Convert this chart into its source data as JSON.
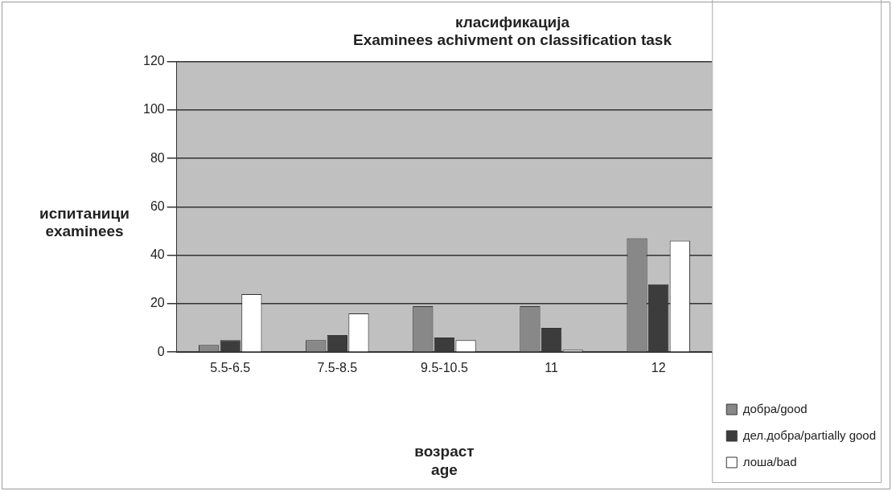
{
  "chart_data": {
    "type": "bar",
    "title": "класификација\nExaminees achivment on classification task",
    "xlabel": "возраст\nage",
    "ylabel": "испитаници\nexaminees",
    "categories": [
      "5.5-6.5",
      "7.5-8.5",
      "9.5-10.5",
      "11",
      "12"
    ],
    "series": [
      {
        "name": "добра/good",
        "color": "#888888",
        "values": [
          3,
          5,
          19,
          19,
          47
        ]
      },
      {
        "name": "дел.добра/partially good",
        "color": "#3c3c3c",
        "values": [
          5,
          7,
          6,
          10,
          28
        ]
      },
      {
        "name": "лоша/bad",
        "color": "#ffffff",
        "values": [
          24,
          16,
          5,
          1,
          46
        ]
      }
    ],
    "ylim": [
      0,
      120
    ],
    "yticks": [
      0,
      20,
      40,
      60,
      80,
      100,
      120
    ],
    "grid": "y",
    "legend": "bottom right"
  }
}
